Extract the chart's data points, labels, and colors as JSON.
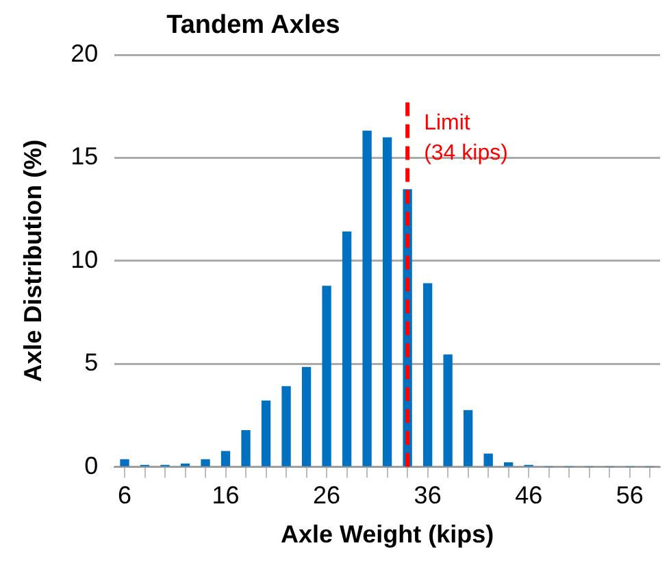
{
  "chart_data": {
    "type": "bar",
    "title": "Tandem Axles",
    "xlabel": "Axle Weight (kips)",
    "ylabel": "Axle Distribution (%)",
    "x": [
      6,
      8,
      10,
      12,
      14,
      16,
      18,
      20,
      22,
      24,
      26,
      28,
      30,
      32,
      34,
      36,
      38,
      40,
      42,
      44,
      46,
      48,
      50,
      52,
      54,
      56,
      58
    ],
    "values": [
      0.35,
      0.07,
      0.07,
      0.14,
      0.35,
      0.75,
      1.76,
      3.2,
      3.9,
      4.83,
      8.77,
      11.4,
      16.3,
      15.97,
      13.45,
      8.89,
      5.43,
      2.73,
      0.62,
      0.2,
      0.07,
      0,
      0,
      0,
      0,
      0,
      0
    ],
    "color": "#0070c0",
    "xlim": [
      5,
      59
    ],
    "xticks": [
      6,
      {
        "value": 8,
        "label": null
      },
      {
        "value": 10,
        "label": null
      },
      {
        "value": 12,
        "label": null
      },
      {
        "value": 14,
        "label": null
      },
      16,
      {
        "value": 18,
        "label": null
      },
      {
        "value": 20,
        "label": null
      },
      {
        "value": 22,
        "label": null
      },
      {
        "value": 24,
        "label": null
      },
      26,
      {
        "value": 28,
        "label": null
      },
      {
        "value": 30,
        "label": null
      },
      {
        "value": 32,
        "label": null
      },
      {
        "value": 34,
        "label": null
      },
      36,
      {
        "value": 38,
        "label": null
      },
      {
        "value": 40,
        "label": null
      },
      {
        "value": 42,
        "label": null
      },
      {
        "value": 44,
        "label": null
      },
      46,
      {
        "value": 48,
        "label": null
      },
      {
        "value": 50,
        "label": null
      },
      {
        "value": 52,
        "label": null
      },
      {
        "value": 54,
        "label": null
      },
      56,
      {
        "value": 58,
        "label": null
      }
    ],
    "ylim": [
      0,
      20
    ],
    "yticks": [
      0,
      5,
      10,
      15,
      20
    ],
    "grid": "y",
    "ref_lines": [
      {
        "axis": "x",
        "value": 34,
        "label": "Limit\n(34 kips)",
        "color": "#ff0000",
        "line_style": "dashed"
      }
    ]
  }
}
